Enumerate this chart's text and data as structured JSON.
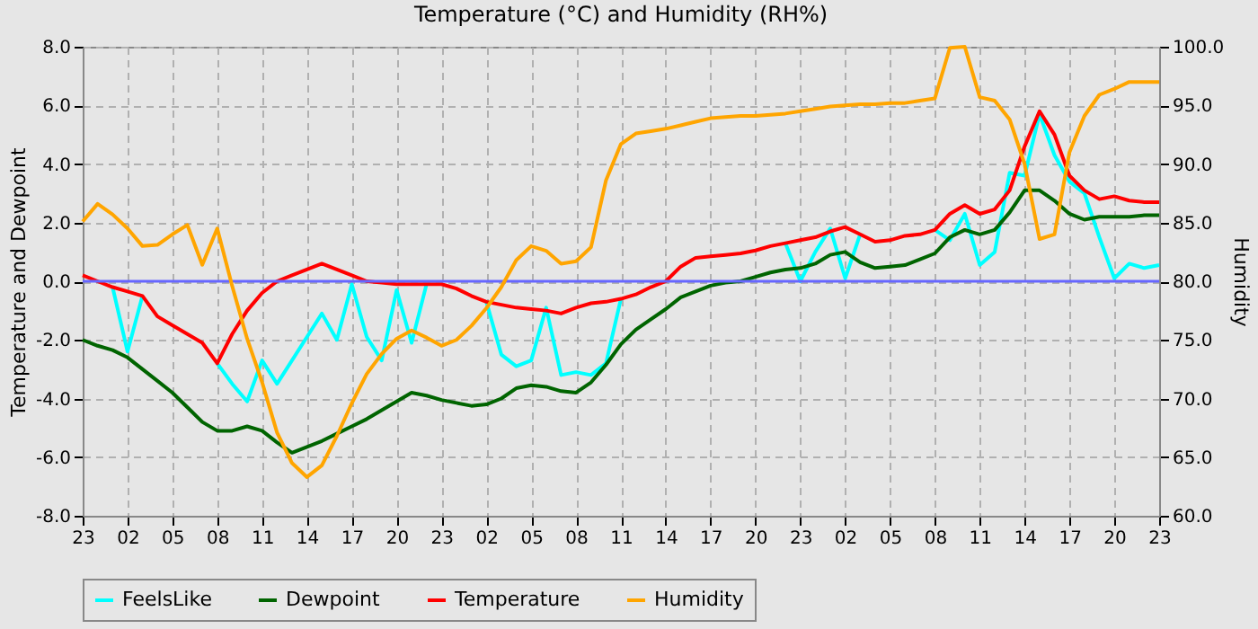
{
  "chart_data": {
    "type": "line",
    "title": "Temperature (°C) and Humidity (RH%)",
    "ylabel": "Temperature and Dewpoint",
    "y2label": "Humidity",
    "categories": [
      "23",
      null,
      null,
      "02",
      null,
      null,
      "05",
      null,
      null,
      "08",
      null,
      null,
      "11",
      null,
      null,
      "14",
      null,
      null,
      "17",
      null,
      null,
      "20",
      null,
      null,
      "23",
      null,
      null,
      "02",
      null,
      null,
      "05",
      null,
      null,
      "08",
      null,
      null,
      "11",
      null,
      null,
      "14",
      null,
      null,
      "17",
      null,
      null,
      "20",
      null,
      null,
      "23",
      null,
      null,
      "02",
      null,
      null,
      "05",
      null,
      null,
      "08",
      null,
      null,
      "11",
      null,
      null,
      "14",
      null,
      null,
      "17",
      null,
      null,
      "20",
      null,
      null,
      "23"
    ],
    "ylim": [
      -8,
      8
    ],
    "yticks": [
      {
        "value": -8,
        "label": "-8.0"
      },
      {
        "value": -6,
        "label": "-6.0"
      },
      {
        "value": -4,
        "label": "-4.0"
      },
      {
        "value": -2,
        "label": "-2.0"
      },
      {
        "value": 0,
        "label": "0.0"
      },
      {
        "value": 2,
        "label": "2.0"
      },
      {
        "value": 4,
        "label": "4.0"
      },
      {
        "value": 6,
        "label": "6.0"
      },
      {
        "value": 8,
        "label": "8.0"
      }
    ],
    "y2lim": [
      60,
      100
    ],
    "y2ticks": [
      {
        "value": 60,
        "label": "60.0"
      },
      {
        "value": 65,
        "label": "65.0"
      },
      {
        "value": 70,
        "label": "70.0"
      },
      {
        "value": 75,
        "label": "75.0"
      },
      {
        "value": 80,
        "label": "80.0"
      },
      {
        "value": 85,
        "label": "85.0"
      },
      {
        "value": 90,
        "label": "90.0"
      },
      {
        "value": 95,
        "label": "95.0"
      },
      {
        "value": 100,
        "label": "100.0"
      }
    ],
    "grid": true,
    "legend": "bottom",
    "ref_lines": [
      {
        "axis": "y",
        "value": 0,
        "color": "#6666ff"
      }
    ],
    "series": [
      {
        "name": "FeelsLike",
        "color": "#00ffff",
        "values": [
          null,
          null,
          -0.2,
          -2.4,
          -0.5,
          null,
          null,
          null,
          null,
          -2.8,
          -3.5,
          -4.1,
          -2.7,
          -3.5,
          -2.7,
          -1.9,
          -1.1,
          -2.0,
          -0.1,
          -1.9,
          -2.7,
          -0.3,
          -2.1,
          -0.1,
          null,
          null,
          null,
          -0.7,
          -2.5,
          -2.9,
          -2.7,
          -0.9,
          -3.2,
          -3.1,
          -3.2,
          -2.8,
          -0.6,
          null,
          null,
          null,
          null,
          null,
          null,
          null,
          null,
          null,
          null,
          1.3,
          0.0,
          1.0,
          1.8,
          0.1,
          1.6,
          null,
          null,
          null,
          null,
          1.75,
          1.4,
          2.3,
          0.55,
          1.0,
          3.7,
          3.6,
          5.7,
          4.3,
          3.4,
          3.0,
          1.5,
          0.1,
          0.6,
          0.45,
          0.55
        ]
      },
      {
        "name": "Dewpoint",
        "color": "#006400",
        "values": [
          -2.0,
          -2.2,
          -2.35,
          -2.6,
          -3.0,
          -3.4,
          -3.8,
          -4.3,
          -4.8,
          -5.1,
          -5.1,
          -4.95,
          -5.1,
          -5.5,
          -5.85,
          -5.65,
          -5.45,
          -5.2,
          -4.95,
          -4.7,
          -4.4,
          -4.1,
          -3.8,
          -3.9,
          -4.05,
          -4.15,
          -4.25,
          -4.2,
          -4.0,
          -3.65,
          -3.55,
          -3.6,
          -3.75,
          -3.8,
          -3.45,
          -2.85,
          -2.15,
          -1.65,
          -1.3,
          -0.95,
          -0.55,
          -0.35,
          -0.15,
          -0.05,
          0.0,
          0.15,
          0.3,
          0.4,
          0.45,
          0.6,
          0.9,
          1.0,
          0.65,
          0.45,
          0.5,
          0.55,
          0.75,
          0.95,
          1.5,
          1.75,
          1.6,
          1.75,
          2.35,
          3.1,
          3.1,
          2.75,
          2.3,
          2.1,
          2.2,
          2.2,
          2.2,
          2.25,
          2.25
        ]
      },
      {
        "name": "Temperature",
        "color": "#ff0000",
        "values": [
          0.2,
          0.0,
          -0.2,
          -0.35,
          -0.5,
          -1.2,
          -1.5,
          -1.8,
          -2.1,
          -2.8,
          -1.8,
          -1.0,
          -0.4,
          0.0,
          0.2,
          0.4,
          0.6,
          0.4,
          0.2,
          0.0,
          -0.05,
          -0.1,
          -0.1,
          -0.1,
          -0.1,
          -0.25,
          -0.5,
          -0.7,
          -0.8,
          -0.9,
          -0.95,
          -1.0,
          -1.1,
          -0.9,
          -0.75,
          -0.7,
          -0.6,
          -0.45,
          -0.2,
          0.0,
          0.5,
          0.8,
          0.85,
          0.9,
          0.95,
          1.05,
          1.2,
          1.3,
          1.4,
          1.5,
          1.7,
          1.85,
          1.6,
          1.35,
          1.4,
          1.55,
          1.6,
          1.75,
          2.3,
          2.6,
          2.3,
          2.45,
          3.1,
          4.6,
          5.8,
          5.0,
          3.6,
          3.1,
          2.8,
          2.9,
          2.75,
          2.7,
          2.7
        ]
      },
      {
        "name": "Humidity",
        "color": "#ffa500",
        "axis": "y2",
        "values": [
          85.1,
          86.6,
          85.7,
          84.5,
          83.0,
          83.1,
          84.0,
          84.8,
          81.4,
          84.5,
          79.6,
          75.1,
          71.4,
          67.1,
          64.5,
          63.3,
          64.3,
          66.8,
          69.6,
          72.1,
          73.8,
          75.1,
          75.8,
          75.2,
          74.5,
          75.0,
          76.2,
          77.7,
          79.5,
          81.8,
          83.0,
          82.6,
          81.5,
          81.7,
          82.9,
          88.6,
          91.7,
          92.6,
          92.8,
          93.0,
          93.3,
          93.6,
          93.9,
          94.0,
          94.1,
          94.1,
          94.2,
          94.3,
          94.5,
          94.7,
          94.9,
          95.0,
          95.1,
          95.1,
          95.2,
          95.2,
          95.4,
          95.6,
          99.9,
          100.0,
          95.7,
          95.4,
          93.8,
          90.0,
          83.6,
          84.0,
          91.0,
          94.1,
          95.9,
          96.4,
          97.0,
          97.0,
          97.0
        ]
      }
    ]
  }
}
